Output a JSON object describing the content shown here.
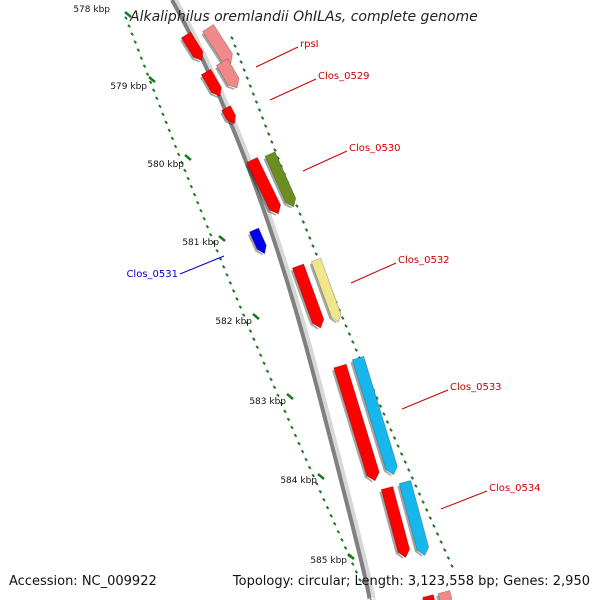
{
  "title": "Alkaliphilus oremlandii OhILAs, complete genome",
  "accession": "Accession: NC_009922",
  "topology": "Topology: circular; Length: 3,123,558 bp; Genes: 2,950",
  "colors": {
    "cds": "#ff0000",
    "pale_red": "#f08a8a",
    "olive": "#6b8e23",
    "khaki": "#f0e68c",
    "sky": "#16b7ec",
    "blue": "#0000ee",
    "tick": "#1a7a1a",
    "backbone": "#808080",
    "label_red": "#cc0000",
    "label_blue": "#0000cc"
  },
  "scale_ticks": [
    "578 kbp",
    "579 kbp",
    "580 kbp",
    "581 kbp",
    "582 kbp",
    "583 kbp",
    "584 kbp",
    "585 kbp"
  ],
  "gene_labels": [
    {
      "name": "rpsI",
      "color_key": "label_red"
    },
    {
      "name": "Clos_0529",
      "color_key": "label_red"
    },
    {
      "name": "Clos_0530",
      "color_key": "label_red"
    },
    {
      "name": "Clos_0531",
      "color_key": "label_blue"
    },
    {
      "name": "Clos_0532",
      "color_key": "label_red"
    },
    {
      "name": "Clos_0533",
      "color_key": "label_red"
    },
    {
      "name": "Clos_0534",
      "color_key": "label_red"
    }
  ]
}
